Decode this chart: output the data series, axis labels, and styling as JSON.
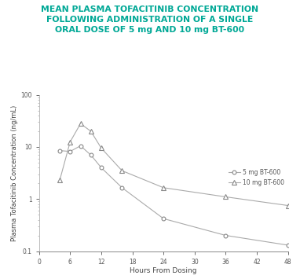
{
  "title_line1": "MEAN PLASMA TOFACITINIB CONCENTRATION",
  "title_line2": "FOLLOWING ADMINISTRATION OF A SINGLE",
  "title_line3": "ORAL DOSE OF 5 mg AND 10 mg BT-600",
  "title_color": "#00A896",
  "xlabel": "Hours From Dosing",
  "ylabel": "Plasma Tofacitinib Concentration (ng/mL)",
  "series_5mg": {
    "x": [
      4,
      6,
      8,
      10,
      12,
      16,
      24,
      36,
      48
    ],
    "y": [
      8.5,
      8.2,
      10.5,
      7.0,
      4.0,
      1.65,
      0.42,
      0.2,
      0.13
    ],
    "label": "5 mg BT-600",
    "marker": "o"
  },
  "series_10mg": {
    "x": [
      4,
      6,
      8,
      10,
      12,
      16,
      24,
      36,
      48
    ],
    "y": [
      2.3,
      12.5,
      28.0,
      20.0,
      9.5,
      3.5,
      1.65,
      1.1,
      0.75
    ],
    "label": "10 mg BT-600",
    "marker": "^"
  },
  "line_color": "#aaaaaa",
  "marker_edge_color": "#888888",
  "xlim": [
    0,
    48
  ],
  "xticks": [
    0,
    6,
    12,
    18,
    24,
    30,
    36,
    42,
    48
  ],
  "ylim": [
    0.1,
    100
  ],
  "yticks": [
    0.1,
    1,
    10,
    100
  ],
  "background_color": "#ffffff",
  "title_fontsize": 7.8,
  "axis_label_fontsize": 6.5,
  "tick_fontsize": 5.5,
  "legend_fontsize": 5.5
}
